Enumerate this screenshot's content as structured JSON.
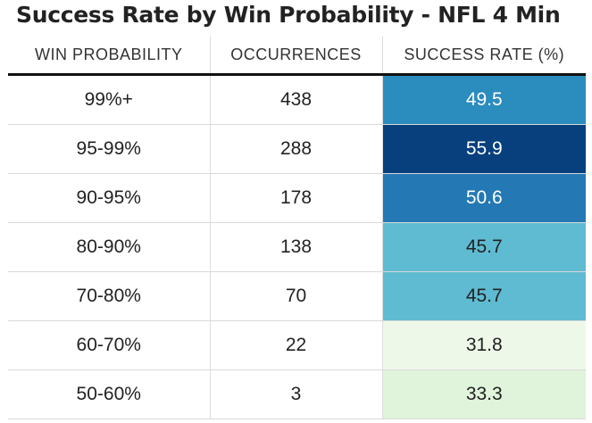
{
  "title": "Success Rate by Win Probability - NFL 4 Min",
  "table": {
    "headers": [
      "WIN PROBABILITY",
      "OCCURRENCES",
      "SUCCESS RATE (%)"
    ],
    "rows": [
      {
        "win_probability": "99%+",
        "occurrences": "438",
        "success_rate": "49.5"
      },
      {
        "win_probability": "95-99%",
        "occurrences": "288",
        "success_rate": "55.9"
      },
      {
        "win_probability": "90-95%",
        "occurrences": "178",
        "success_rate": "50.6"
      },
      {
        "win_probability": "80-90%",
        "occurrences": "138",
        "success_rate": "45.7"
      },
      {
        "win_probability": "70-80%",
        "occurrences": "70",
        "success_rate": "45.7"
      },
      {
        "win_probability": "60-70%",
        "occurrences": "22",
        "success_rate": "31.8"
      },
      {
        "win_probability": "50-60%",
        "occurrences": "3",
        "success_rate": "33.3"
      }
    ]
  },
  "chart_data": {
    "type": "table",
    "title": "Success Rate by Win Probability - NFL 4 Min",
    "columns": [
      "WIN PROBABILITY",
      "OCCURRENCES",
      "SUCCESS RATE (%)"
    ],
    "categories": [
      "99%+",
      "95-99%",
      "90-95%",
      "80-90%",
      "70-80%",
      "60-70%",
      "50-60%"
    ],
    "series": [
      {
        "name": "OCCURRENCES",
        "values": [
          438,
          288,
          178,
          138,
          70,
          22,
          3
        ]
      },
      {
        "name": "SUCCESS RATE (%)",
        "values": [
          49.5,
          55.9,
          50.6,
          45.7,
          45.7,
          31.8,
          33.3
        ]
      }
    ],
    "heat_colors": [
      "#2b8cbe",
      "#08407e",
      "#2479b4",
      "#5fbbd1",
      "#5fbbd1",
      "#eef8e9",
      "#e0f3db"
    ],
    "heat_text_colors": [
      "#ffffff",
      "#ffffff",
      "#ffffff",
      "#222222",
      "#222222",
      "#222222",
      "#222222"
    ]
  }
}
